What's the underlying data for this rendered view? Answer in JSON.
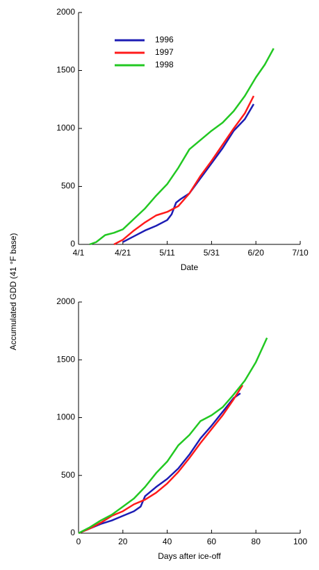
{
  "chart_data": [
    {
      "type": "line",
      "xlabel": "Date",
      "ylabel": "Accumulated  GDD (41 °F base)",
      "xlim": [
        0,
        100
      ],
      "ylim": [
        0,
        2000
      ],
      "xticks": [
        {
          "value": 0,
          "label": "4/1"
        },
        {
          "value": 20,
          "label": "4/21"
        },
        {
          "value": 40,
          "label": "5/11"
        },
        {
          "value": 60,
          "label": "5/31"
        },
        {
          "value": 80,
          "label": "6/20"
        },
        {
          "value": 100,
          "label": "7/10"
        }
      ],
      "yticks": [
        0,
        500,
        1000,
        1500,
        2000
      ],
      "legend": "upper left",
      "series": [
        {
          "name": "1996",
          "color": "#1c1cb4",
          "x": [
            20,
            25,
            30,
            35,
            40,
            42,
            44,
            46,
            50,
            55,
            60,
            65,
            70,
            75,
            79
          ],
          "values": [
            20,
            70,
            120,
            160,
            210,
            260,
            360,
            390,
            440,
            570,
            700,
            830,
            980,
            1080,
            1210
          ]
        },
        {
          "name": "1997",
          "color": "#ff1a1a",
          "x": [
            16,
            20,
            25,
            30,
            35,
            40,
            45,
            50,
            55,
            60,
            65,
            70,
            75,
            79
          ],
          "values": [
            0,
            40,
            120,
            190,
            250,
            280,
            330,
            440,
            590,
            720,
            860,
            1000,
            1130,
            1280
          ]
        },
        {
          "name": "1998",
          "color": "#22c822",
          "x": [
            5,
            8,
            12,
            16,
            20,
            25,
            30,
            35,
            40,
            45,
            50,
            55,
            60,
            65,
            70,
            75,
            80,
            84,
            88
          ],
          "values": [
            0,
            20,
            80,
            100,
            130,
            220,
            310,
            420,
            520,
            660,
            820,
            900,
            980,
            1050,
            1150,
            1280,
            1440,
            1550,
            1690
          ]
        }
      ]
    },
    {
      "type": "line",
      "xlabel": "Days   after   ice-off",
      "xlim": [
        0,
        100
      ],
      "ylim": [
        0,
        2000
      ],
      "xticks": [
        0,
        20,
        40,
        60,
        80,
        100
      ],
      "yticks": [
        0,
        500,
        1000,
        1500,
        2000
      ],
      "series": [
        {
          "color": "#1c1cb4",
          "x": [
            0,
            5,
            10,
            15,
            20,
            25,
            28,
            30,
            35,
            40,
            45,
            50,
            55,
            60,
            65,
            70,
            73
          ],
          "values": [
            0,
            40,
            80,
            110,
            150,
            190,
            230,
            320,
            400,
            470,
            560,
            680,
            820,
            930,
            1050,
            1170,
            1210
          ]
        },
        {
          "color": "#ff1a1a",
          "x": [
            0,
            5,
            10,
            15,
            20,
            25,
            30,
            35,
            40,
            45,
            50,
            55,
            60,
            65,
            70,
            74
          ],
          "values": [
            0,
            40,
            90,
            150,
            190,
            250,
            290,
            350,
            430,
            530,
            650,
            780,
            900,
            1020,
            1160,
            1280
          ]
        },
        {
          "color": "#22c822",
          "x": [
            0,
            5,
            10,
            15,
            20,
            25,
            30,
            35,
            40,
            45,
            50,
            55,
            60,
            65,
            70,
            75,
            80,
            85
          ],
          "values": [
            0,
            50,
            110,
            160,
            230,
            300,
            400,
            520,
            620,
            760,
            850,
            970,
            1020,
            1090,
            1200,
            1320,
            1480,
            1690
          ]
        }
      ]
    }
  ]
}
